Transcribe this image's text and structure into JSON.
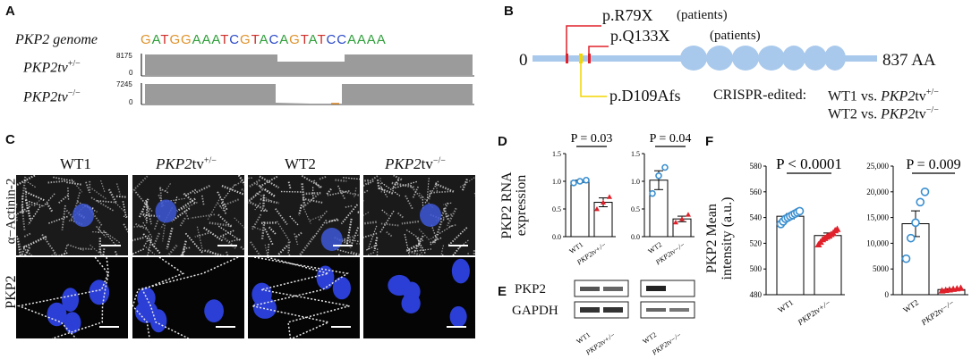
{
  "panels": {
    "a": "A",
    "b": "B",
    "c": "C",
    "d": "D",
    "e": "E",
    "f": "F"
  },
  "panel_a": {
    "genome_label": "PKP2 genome",
    "sequence": "GATGGAAATCGTACAGTATCCAAAA",
    "track1_label": "PKP2tv",
    "track1_sup": "+/−",
    "track1_max": "8175",
    "track1_zero": "0",
    "track2_label": "PKP2tv",
    "track2_sup": "−/−",
    "track2_max": "7245",
    "track2_zero": "0"
  },
  "panel_b": {
    "mut1": "p.R79X",
    "mut1_note": "(patients)",
    "mut2": "p.Q133X",
    "mut2_note": "(patients)",
    "start": "0",
    "end": "837 AA",
    "edit": "p.D109Afs",
    "crispr_label": "CRISPR-edited:",
    "line1_wt": "WT1 vs. ",
    "line1_mut": "PKP2",
    "line1_tv": "tv",
    "line1_sup": "+/−",
    "line2_wt": "WT2 vs. ",
    "line2_mut": "PKP2",
    "line2_tv": "tv",
    "line2_sup": "−/−"
  },
  "panel_c": {
    "col1": "WT1",
    "col2_a": "PKP2",
    "col2_b": "tv",
    "col2_sup": "+/−",
    "col3": "WT2",
    "col4_a": "PKP2",
    "col4_b": "tv",
    "col4_sup": "−/−",
    "row1": "α−Actinin-2",
    "row2": "PKP2"
  },
  "panel_e": {
    "row1": "PKP2",
    "row2": "GAPDH"
  },
  "colors": {
    "blue_nuclei": "#2b3fd6",
    "protein_bar": "#a9c9ec",
    "red_mark": "#e0202a",
    "yellow_mark": "#f2d600",
    "wt_marker": "#3a8fd0",
    "mut_marker": "#e0202a"
  },
  "chart_data": [
    {
      "type": "bar",
      "id": "D-left",
      "title": "P = 0.03",
      "ylabel": "PKP2 RNA expression",
      "categories": [
        "WT1",
        "PKP2tv+/−"
      ],
      "values": [
        1.0,
        0.62
      ],
      "errors": [
        0.02,
        0.08
      ],
      "points": [
        [
          0.97,
          1.0,
          1.02
        ],
        [
          0.5,
          0.62,
          0.72
        ]
      ],
      "ylim": [
        0,
        1.5
      ],
      "yticks": [
        "0.0",
        "0.5",
        "1.0",
        "1.5"
      ]
    },
    {
      "type": "bar",
      "id": "D-right",
      "title": "P = 0.04",
      "ylabel": "",
      "categories": [
        "WT2",
        "PKP2tv−/−"
      ],
      "values": [
        1.02,
        0.32
      ],
      "errors": [
        0.17,
        0.05
      ],
      "points": [
        [
          0.78,
          1.1,
          1.25
        ],
        [
          0.26,
          0.32,
          0.4
        ]
      ],
      "ylim": [
        0,
        1.5
      ],
      "yticks": [
        "0.0",
        "0.5",
        "1.0",
        "1.5"
      ]
    },
    {
      "type": "bar",
      "id": "F-left",
      "title": "P < 0.0001",
      "ylabel": "PKP2 Mean intensity (a.u.)",
      "categories": [
        "WT1",
        "PKP2tv+/−"
      ],
      "values": [
        541,
        526
      ],
      "errors": [
        2,
        2
      ],
      "points": [
        [
          535,
          537,
          539,
          540,
          541,
          542,
          543,
          544,
          545
        ],
        [
          519,
          521,
          523,
          524,
          525,
          526,
          527,
          528,
          530,
          531
        ]
      ],
      "ylim": [
        480,
        580
      ],
      "yticks": [
        "480",
        "500",
        "520",
        "540",
        "560",
        "580"
      ]
    },
    {
      "type": "bar",
      "id": "F-right",
      "title": "P = 0.009",
      "ylabel": "",
      "categories": [
        "WT2",
        "PKP2tv−/−"
      ],
      "values": [
        13800,
        1000
      ],
      "errors": [
        2500,
        150
      ],
      "points": [
        [
          7000,
          11000,
          14000,
          18000,
          20000
        ],
        [
          800,
          900,
          1000,
          1100,
          1200,
          1300
        ]
      ],
      "ylim": [
        0,
        25000
      ],
      "yticks": [
        "0",
        "5000",
        "10,000",
        "15,000",
        "20,000",
        "25,000"
      ]
    }
  ]
}
